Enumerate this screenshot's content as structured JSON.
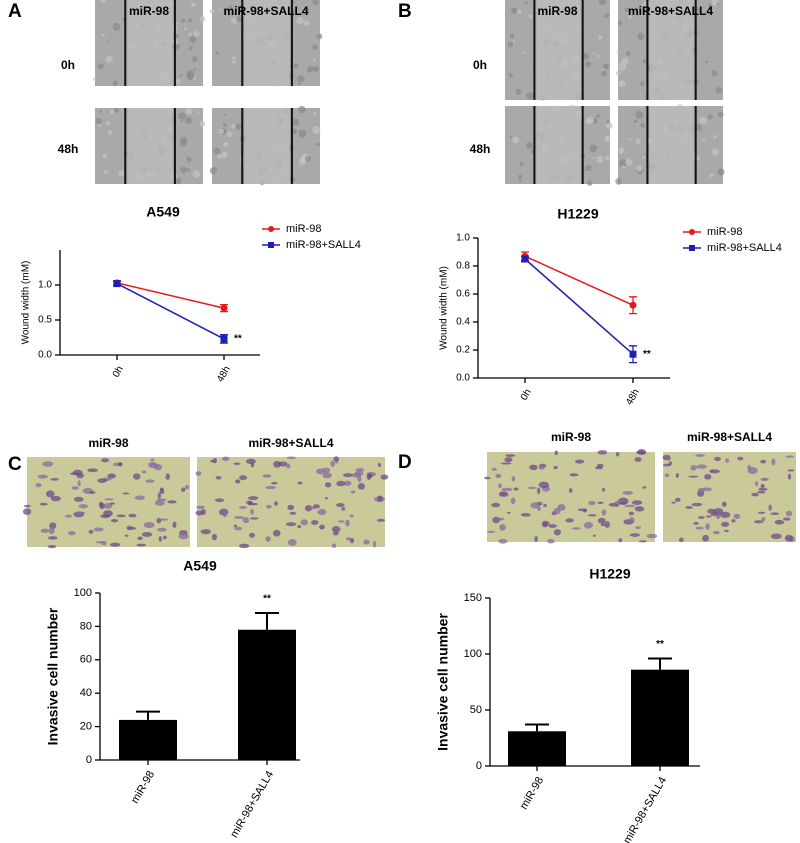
{
  "panels": [
    {
      "letter": "A",
      "columns": [
        "miR-98",
        "miR-98+SALL4"
      ],
      "rows": [
        "0h",
        "48h"
      ]
    },
    {
      "letter": "B",
      "columns": [
        "miR-98",
        "miR-98+SALL4"
      ],
      "rows": [
        "0h",
        "48h"
      ]
    },
    {
      "letter": "C",
      "columns": [
        "miR-98",
        "miR-98+SALL4"
      ]
    },
    {
      "letter": "D",
      "columns": [
        "miR-98",
        "miR-98+SALL4"
      ]
    }
  ],
  "chart_data": [
    {
      "type": "line",
      "title": "A549",
      "ylabel": "Wound width (mM)",
      "categories": [
        "0h",
        "48h"
      ],
      "series": [
        {
          "name": "miR-98",
          "color": "#e41a1c",
          "values": [
            1.03,
            0.67
          ],
          "errors": [
            0.03,
            0.05
          ]
        },
        {
          "name": "miR-98+SALL4",
          "color": "#1f1fb4",
          "values": [
            1.02,
            0.23
          ],
          "errors": [
            0.03,
            0.06
          ]
        }
      ],
      "ylim": [
        0,
        1.5
      ],
      "yticks": [
        {
          "value": 0,
          "label": "0.0"
        },
        {
          "value": 0.5,
          "label": "0.5"
        },
        {
          "value": 1,
          "label": "1.0"
        }
      ],
      "annotation": "**",
      "legend": "upper right"
    },
    {
      "type": "line",
      "title": "H1229",
      "ylabel": "Wound width (mM)",
      "categories": [
        "0h",
        "48h"
      ],
      "series": [
        {
          "name": "miR-98",
          "color": "#e41a1c",
          "values": [
            0.87,
            0.52
          ],
          "errors": [
            0.03,
            0.06
          ]
        },
        {
          "name": "miR-98+SALL4",
          "color": "#1f1fb4",
          "values": [
            0.85,
            0.17
          ],
          "errors": [
            0.02,
            0.06
          ]
        }
      ],
      "ylim": [
        0,
        1
      ],
      "yticks": [
        {
          "value": 0,
          "label": "0.0"
        },
        {
          "value": 0.2,
          "label": "0.2"
        },
        {
          "value": 0.4,
          "label": "0.4"
        },
        {
          "value": 0.6,
          "label": "0.6"
        },
        {
          "value": 0.8,
          "label": "0.8"
        },
        {
          "value": 1,
          "label": "1.0"
        }
      ],
      "annotation": "**",
      "legend": "upper right"
    },
    {
      "type": "bar",
      "title": "A549",
      "ylabel": "Invasive cell number",
      "categories": [
        "miR-98",
        "miR-98+SALL4"
      ],
      "values": [
        24,
        78
      ],
      "errors": [
        5,
        10
      ],
      "color": "#000000",
      "ylim": [
        0,
        100
      ],
      "yticks": [
        0,
        20,
        40,
        60,
        80,
        100
      ],
      "annotation": "**"
    },
    {
      "type": "bar",
      "title": "H1229",
      "ylabel": "Invasive cell number",
      "categories": [
        "miR-98",
        "miR-98+SALL4"
      ],
      "values": [
        31,
        86
      ],
      "errors": [
        6,
        10
      ],
      "color": "#000000",
      "ylim": [
        0,
        150
      ],
      "yticks": [
        0,
        50,
        100,
        150
      ],
      "annotation": "**"
    }
  ]
}
